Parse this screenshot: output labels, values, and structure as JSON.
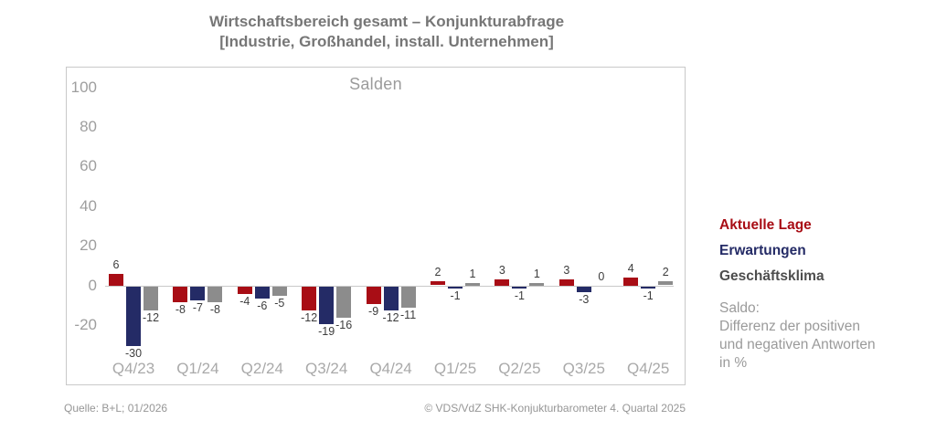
{
  "title": {
    "line1": "Wirtschaftsbereich gesamt – Konjunkturabfrage",
    "line2": "[Industrie, Großhandel, install. Unternehmen]"
  },
  "chart_data": {
    "type": "bar",
    "title": "Salden",
    "categories": [
      "Q4/23",
      "Q1/24",
      "Q2/24",
      "Q3/24",
      "Q4/24",
      "Q1/25",
      "Q2/25",
      "Q3/25",
      "Q4/25"
    ],
    "series": [
      {
        "key": "aktuelle-lage",
        "name": "Aktuelle Lage",
        "color": "#a80d15",
        "values": [
          6,
          -8,
          -4,
          -12,
          -9,
          2,
          3,
          3,
          4
        ]
      },
      {
        "key": "erwartungen",
        "name": "Erwartungen",
        "color": "#242b66",
        "values": [
          -30,
          -7,
          -6,
          -19,
          -12,
          -1,
          -1,
          -3,
          -1
        ]
      },
      {
        "key": "geschaeftsklima",
        "name": "Geschäftsklima",
        "color": "#8c8c8c",
        "values": [
          -12,
          -8,
          -5,
          -16,
          -11,
          1,
          1,
          0,
          2
        ]
      }
    ],
    "yticks": [
      100,
      80,
      60,
      40,
      20,
      0,
      -20
    ],
    "ylim": [
      -50,
      110
    ],
    "grid": false,
    "legend_position": "right"
  },
  "legend": {
    "items": [
      {
        "label": "Aktuelle Lage",
        "color": "#a80d15"
      },
      {
        "label": "Erwartungen",
        "color": "#242b66"
      },
      {
        "label": "Geschäftsklima",
        "color": "#4d4d4d"
      }
    ],
    "note": [
      "Saldo:",
      "Differenz der positiven",
      "und negativen Antworten",
      "in %"
    ]
  },
  "footer": {
    "source": "Quelle: B+L; 01/2026",
    "copyright": "© VDS/VdZ SHK-Konjukturbarometer 4. Quartal 2025"
  }
}
